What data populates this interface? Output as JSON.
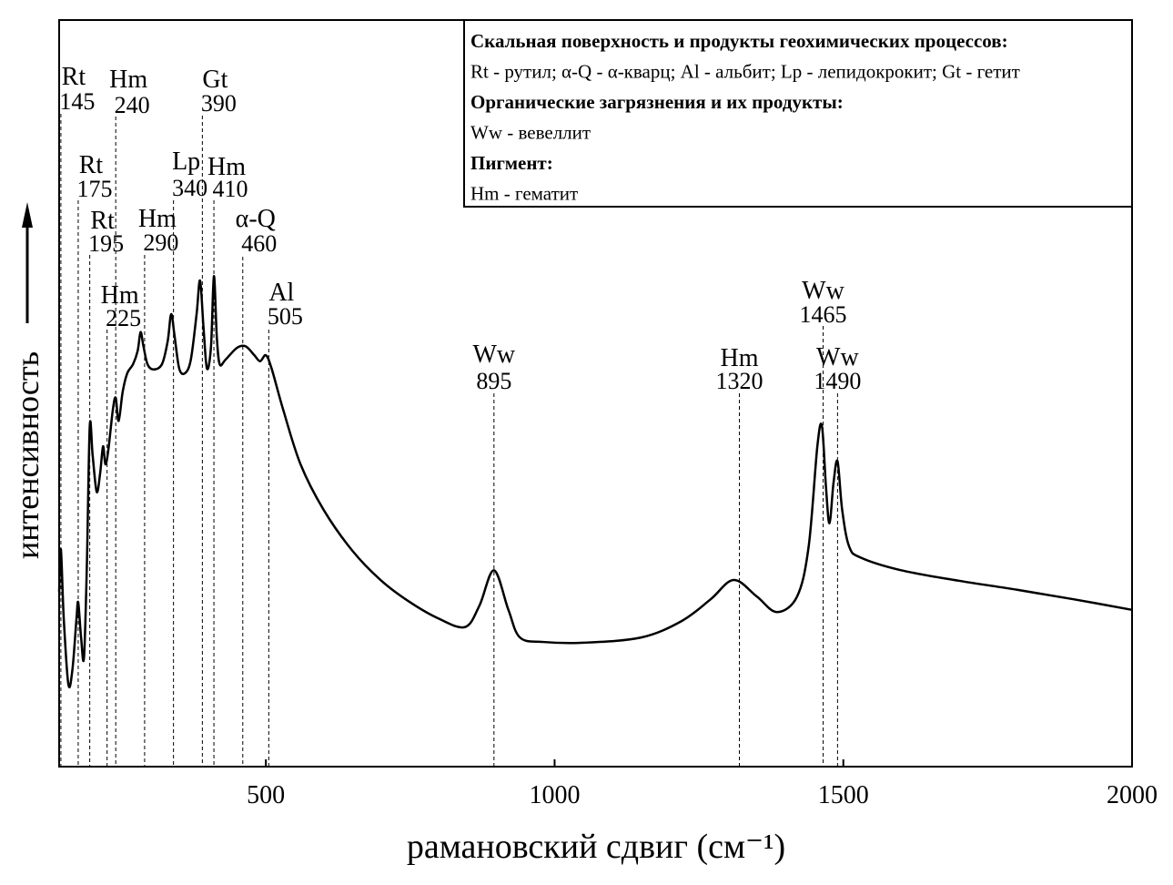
{
  "chart_data": {
    "type": "line",
    "xlabel": "рамановский сдвиг (см⁻¹)",
    "ylabel": "интенсивность",
    "xlim": [
      142,
      2000
    ],
    "ylim": [
      0,
      100
    ],
    "xticks": [
      500,
      1000,
      1500,
      2000
    ],
    "color": "#000000",
    "x": [
      142,
      145,
      150,
      158,
      165,
      172,
      175,
      180,
      185,
      190,
      195,
      200,
      207,
      213,
      218,
      222,
      227,
      235,
      240,
      245,
      252,
      260,
      270,
      278,
      283,
      288,
      295,
      305,
      320,
      330,
      336,
      342,
      350,
      360,
      370,
      380,
      386,
      392,
      398,
      405,
      410,
      415,
      420,
      430,
      450,
      465,
      480,
      490,
      500,
      510,
      530,
      560,
      600,
      650,
      700,
      750,
      800,
      845,
      870,
      895,
      920,
      940,
      980,
      1050,
      1150,
      1220,
      1270,
      1310,
      1350,
      1385,
      1420,
      1440,
      1455,
      1463,
      1470,
      1476,
      1483,
      1490,
      1498,
      1510,
      1530,
      1600,
      1700,
      1800,
      1900,
      2000
    ],
    "values": [
      23.4,
      29.1,
      19.8,
      11,
      13,
      19.8,
      22,
      17.3,
      14.6,
      27,
      45.6,
      41.7,
      36.8,
      39.3,
      42.9,
      40.5,
      42.3,
      47.8,
      49.4,
      46.3,
      50.2,
      52.7,
      53.9,
      55.7,
      58.2,
      56.3,
      53.9,
      53.2,
      53.9,
      57,
      60.6,
      57.6,
      53.3,
      52.7,
      54.5,
      60.6,
      65.1,
      58.8,
      53.3,
      56.3,
      65.7,
      57.6,
      53.9,
      54.5,
      56.1,
      56.3,
      55.1,
      54.3,
      55.1,
      53.3,
      47.8,
      40.5,
      34.4,
      28.9,
      24.9,
      22,
      19.8,
      18.7,
      21.6,
      26.3,
      21,
      17.3,
      16.7,
      16.6,
      17.3,
      19.5,
      22.4,
      25,
      22.8,
      20.7,
      22.8,
      29.5,
      42.9,
      45.6,
      37.4,
      32.6,
      38,
      40.9,
      34.4,
      29.5,
      28,
      26.3,
      24.9,
      23.7,
      22.4,
      21
    ],
    "annotations": [
      {
        "label": "Rt",
        "x": 145
      },
      {
        "label": "Rt",
        "x": 175
      },
      {
        "label": "Rt",
        "x": 195
      },
      {
        "label": "Hm",
        "x": 225
      },
      {
        "label": "Hm",
        "x": 240
      },
      {
        "label": "Hm",
        "x": 290
      },
      {
        "label": "Lp",
        "x": 340
      },
      {
        "label": "Gt",
        "x": 390
      },
      {
        "label": "Hm",
        "x": 410
      },
      {
        "label": "α-Q",
        "x": 460
      },
      {
        "label": "Al",
        "x": 505
      },
      {
        "label": "Ww",
        "x": 895
      },
      {
        "label": "Hm",
        "x": 1320
      },
      {
        "label": "Ww",
        "x": 1465
      },
      {
        "label": "Ww",
        "x": 1490
      }
    ],
    "legend": [
      {
        "text": "Скальная поверхность и продукты геохимических процессов:",
        "bold": true
      },
      {
        "text": "Rt - рутил; α-Q - α-кварц; Al - альбит; Lp - лепидокрокит; Gt - гетит",
        "bold": false
      },
      {
        "text": "Органические загрязнения и их продукты:",
        "bold": true
      },
      {
        "text": "Ww - вевеллит",
        "bold": false
      },
      {
        "text": "Пигмент:",
        "bold": true
      },
      {
        "text": "Hm - гематит",
        "bold": false
      }
    ]
  }
}
